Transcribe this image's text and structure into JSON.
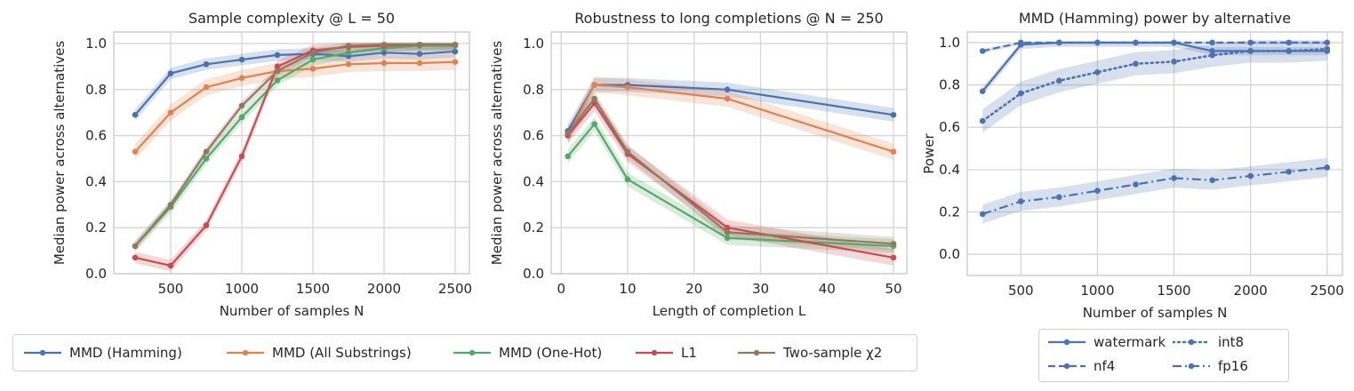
{
  "chart_data": [
    {
      "type": "line",
      "title": "Sample complexity @ L = 50",
      "xlabel": "Number of samples N",
      "ylabel": "Median power across alternatives",
      "xlim": [
        100,
        2600
      ],
      "ylim": [
        0,
        1.05
      ],
      "xticks": [
        500,
        1000,
        1500,
        2000,
        2500
      ],
      "yticks": [
        0.0,
        0.2,
        0.4,
        0.6,
        0.8,
        1.0
      ],
      "grid": true,
      "x": [
        250,
        500,
        750,
        1000,
        1250,
        1500,
        1750,
        2000,
        2250,
        2500
      ],
      "series": [
        {
          "name": "MMD (Hamming)",
          "color": "#4c72b0",
          "values": [
            0.69,
            0.87,
            0.91,
            0.93,
            0.95,
            0.955,
            0.945,
            0.96,
            0.955,
            0.965
          ],
          "band": 0.025
        },
        {
          "name": "MMD (All Substrings)",
          "color": "#dd8452",
          "values": [
            0.53,
            0.7,
            0.81,
            0.85,
            0.88,
            0.89,
            0.91,
            0.915,
            0.915,
            0.92
          ],
          "band": 0.035
        },
        {
          "name": "MMD (One-Hot)",
          "color": "#55a868",
          "values": [
            0.12,
            0.29,
            0.5,
            0.68,
            0.84,
            0.93,
            0.96,
            0.98,
            0.99,
            0.99
          ],
          "band": 0.025
        },
        {
          "name": "L1",
          "color": "#c44e52",
          "values": [
            0.07,
            0.035,
            0.21,
            0.51,
            0.9,
            0.97,
            0.985,
            0.99,
            0.995,
            0.995
          ],
          "band": 0.025
        },
        {
          "name": "Two-sample χ2",
          "color": "#937860",
          "values": [
            0.12,
            0.3,
            0.53,
            0.73,
            0.88,
            0.96,
            0.99,
            0.995,
            0.995,
            0.995
          ],
          "band": 0.02
        }
      ]
    },
    {
      "type": "line",
      "title": "Robustness to long completions @ N = 250",
      "xlabel": "Length of completion L",
      "ylabel": "Median power across alternatives",
      "xlim": [
        -1.5,
        52
      ],
      "ylim": [
        0,
        1.05
      ],
      "xticks": [
        0,
        10,
        20,
        30,
        40,
        50
      ],
      "yticks": [
        0.0,
        0.2,
        0.4,
        0.6,
        0.8,
        1.0
      ],
      "grid": true,
      "x": [
        1,
        5,
        10,
        25,
        50
      ],
      "series": [
        {
          "name": "MMD (Hamming)",
          "color": "#4c72b0",
          "values": [
            0.62,
            0.82,
            0.82,
            0.8,
            0.69
          ],
          "band": 0.03
        },
        {
          "name": "MMD (All Substrings)",
          "color": "#dd8452",
          "values": [
            0.6,
            0.82,
            0.81,
            0.76,
            0.53
          ],
          "band": 0.035
        },
        {
          "name": "MMD (One-Hot)",
          "color": "#55a868",
          "values": [
            0.51,
            0.65,
            0.41,
            0.155,
            0.12
          ],
          "band": 0.03
        },
        {
          "name": "L1",
          "color": "#c44e52",
          "values": [
            0.6,
            0.74,
            0.52,
            0.2,
            0.07
          ],
          "band": 0.035
        },
        {
          "name": "Two-sample χ2",
          "color": "#937860",
          "values": [
            0.61,
            0.76,
            0.53,
            0.18,
            0.13
          ],
          "band": 0.03
        }
      ]
    },
    {
      "type": "line",
      "title": "MMD (Hamming) power by alternative",
      "xlabel": "Number of samples N",
      "ylabel": "Power",
      "xlim": [
        150,
        2600
      ],
      "ylim": [
        -0.1,
        1.05
      ],
      "xticks": [
        500,
        1000,
        1500,
        2000,
        2500
      ],
      "yticks": [
        0.0,
        0.2,
        0.4,
        0.6,
        0.8,
        1.0
      ],
      "grid": true,
      "x": [
        250,
        500,
        750,
        1000,
        1250,
        1500,
        1750,
        2000,
        2250,
        2500
      ],
      "series": [
        {
          "name": "watermark",
          "color": "#4c72b0",
          "dash": "solid",
          "values": [
            0.77,
            0.99,
            1.0,
            1.0,
            1.0,
            1.0,
            0.96,
            0.96,
            0.96,
            0.96
          ],
          "band": 0.02
        },
        {
          "name": "nf4",
          "color": "#4c72b0",
          "dash": "dashed",
          "values": [
            0.96,
            1.0,
            1.0,
            1.0,
            1.0,
            1.0,
            1.0,
            1.0,
            1.0,
            1.0
          ],
          "band": 0.01
        },
        {
          "name": "int8",
          "color": "#4c72b0",
          "dash": "dotted",
          "values": [
            0.63,
            0.76,
            0.82,
            0.86,
            0.9,
            0.91,
            0.94,
            0.96,
            0.96,
            0.97
          ],
          "band": 0.055
        },
        {
          "name": "fp16",
          "color": "#4c72b0",
          "dash": "dashdot",
          "values": [
            0.19,
            0.25,
            0.27,
            0.3,
            0.33,
            0.36,
            0.35,
            0.37,
            0.39,
            0.41
          ],
          "band": 0.045
        }
      ]
    }
  ],
  "legend_main": {
    "placement": "bottom-left",
    "items": [
      {
        "label": "MMD (Hamming)",
        "color": "#4c72b0"
      },
      {
        "label": "MMD (All Substrings)",
        "color": "#dd8452"
      },
      {
        "label": "MMD (One-Hot)",
        "color": "#55a868"
      },
      {
        "label": "L1",
        "color": "#c44e52"
      },
      {
        "label": "Two-sample χ2",
        "color": "#937860"
      }
    ]
  },
  "legend_right": {
    "placement": "bottom-right",
    "items": [
      {
        "label": "watermark",
        "dash": "solid"
      },
      {
        "label": "int8",
        "dash": "dotted"
      },
      {
        "label": "nf4",
        "dash": "dashed"
      },
      {
        "label": "fp16",
        "dash": "dashdot"
      }
    ]
  }
}
